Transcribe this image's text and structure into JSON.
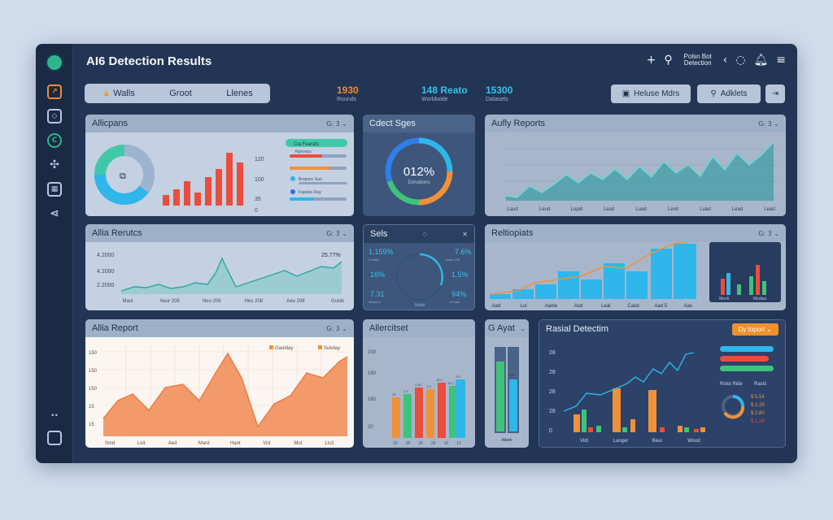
{
  "app": {
    "title": "AI6 Detection Results"
  },
  "topbar": {
    "icons": [
      "plus-icon",
      "search-icon",
      "chevron-left-icon",
      "refresh-icon",
      "bell-icon",
      "menu-icon"
    ],
    "label": "Polsn Bot\nDetection",
    "plus": "+",
    "search": "⚲",
    "back": "‹",
    "refresh": "◌",
    "bell": "🔔︎",
    "menu": "≡"
  },
  "filters": {
    "tabs": [
      "Walls",
      "Groot",
      "Llenes"
    ],
    "warn": "▲"
  },
  "kpis": [
    {
      "value": "1930",
      "sub": "Rounds",
      "color": "#f58b2b"
    },
    {
      "value": "148 Reato",
      "sub": "Worldwide",
      "color": "#37c3ea"
    },
    {
      "value": "15300",
      "sub": "Datasets",
      "color": "#37c3ea"
    }
  ],
  "actions": {
    "primary": "Heluse Mdrs",
    "secondary": "Adklets",
    "arrow": "⇥"
  },
  "cards": {
    "c1": {
      "title": "Allicpans",
      "ctl": "G: 3 ⌄",
      "ylabels": [
        "120",
        "100",
        "35",
        "0"
      ],
      "center": "⧉",
      "legend": [
        {
          "label": "Cla Fearats"
        },
        {
          "label": "Rpnoacs"
        },
        {
          "label": "Bropsec Sun"
        },
        {
          "label": "Fapelss Ray"
        }
      ]
    },
    "c2": {
      "title": "Cdect Sges",
      "value": "012%",
      "sub": "Donations"
    },
    "c3": {
      "title": "Aufly Reports",
      "ctl": "G: 3 ⌄",
      "xlabels": [
        "Laud",
        "Leud",
        "Lepid",
        "Lead",
        "Luad",
        "Lenit",
        "Luad",
        "Lead",
        "Lead"
      ]
    },
    "c4": {
      "title": "Allia Rerutcs",
      "ctl": "G: 3 ⌄",
      "ylabels": [
        "4.2000",
        "4.2000",
        "2.2000"
      ],
      "peak": "25.77%",
      "xlabels": [
        "Maul",
        "Aeur 208",
        "Neu 208",
        "Heu 208",
        "Aeu 208",
        "Guide"
      ]
    },
    "c5": {
      "title": "Sels",
      "ctl": "✕",
      "tl": "1.159%",
      "tr": "7.6%",
      "ml": "16%",
      "mr": "1.5%",
      "bl": "7.31",
      "br": "94%",
      "bottom": "Seldo",
      "sublabels": [
        "9 rakes",
        "Chiso 208",
        "Seepsot",
        "6 Foes"
      ]
    },
    "c6": {
      "title": "Reltiopiats",
      "ctl": "G: 3 ⌄",
      "xlabels": [
        "Aad",
        "Lul",
        "Aaote",
        "Aod",
        "Leal",
        "Caod",
        "Aad 5",
        "Aau"
      ],
      "inset": [
        "Mooli",
        "Modias"
      ]
    },
    "c7": {
      "title": "Allia Report",
      "ctl": "G: 3 ⌄",
      "legend": [
        "Gaolday",
        "Sukday"
      ],
      "ylabels": [
        "150",
        "150",
        "150",
        "15",
        "15"
      ],
      "xlabels": [
        "Smd",
        "Loit",
        "Aed",
        "Mard",
        "Hant",
        "Vrd",
        "Mut",
        "Lis3"
      ]
    },
    "c8": {
      "title": "Allercitset",
      "ylabels": [
        "200",
        "160",
        "160",
        "20"
      ],
      "xlabels": [
        "15",
        "25",
        "26",
        "26",
        "10",
        "12"
      ],
      "vals": [
        "15",
        "2.9",
        "2.00",
        "1.0",
        "18.9",
        "15.0",
        "2.8"
      ]
    },
    "c9": {
      "title": "G Ayat",
      "ctl": "⌄",
      "bottom": "Attafe",
      "val": "1.0"
    },
    "c10": {
      "title": "Rasial Detectim",
      "badge": "Dy toport",
      "ylabels": [
        "28",
        "28",
        "28",
        "28",
        "0"
      ],
      "xlabels": [
        "Vidi",
        "Langer",
        "Beur",
        "Wood"
      ],
      "legend_title": [
        "Rolst Ride",
        "Rasts"
      ],
      "rates": [
        "$ 5.54",
        "$ 1.25",
        "$ 2.80",
        "$ 1.28"
      ]
    }
  },
  "colors": {
    "orange": "#f07a3a",
    "red": "#ea4d3d",
    "blue": "#2fb6ea",
    "green": "#3fc27a",
    "teal": "#4fc0b6"
  }
}
